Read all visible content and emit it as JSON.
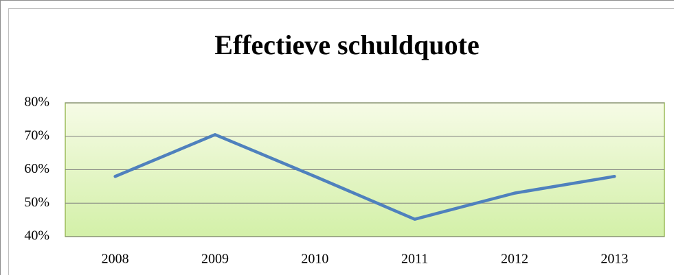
{
  "chart_data": {
    "type": "line",
    "title": "Effectieve schuldquote",
    "categories": [
      "2008",
      "2009",
      "2010",
      "2011",
      "2012",
      "2013"
    ],
    "series": [
      {
        "color": "#4f81bd",
        "values": [
          58,
          70.5,
          58,
          45.2,
          53,
          58
        ]
      }
    ],
    "ylim": [
      40,
      80
    ],
    "yticks": [
      {
        "value": 40,
        "label": "40%"
      },
      {
        "value": 50,
        "label": "50%"
      },
      {
        "value": 60,
        "label": "60%"
      },
      {
        "value": 70,
        "label": "70%"
      },
      {
        "value": 80,
        "label": "80%"
      }
    ],
    "grid": true
  }
}
